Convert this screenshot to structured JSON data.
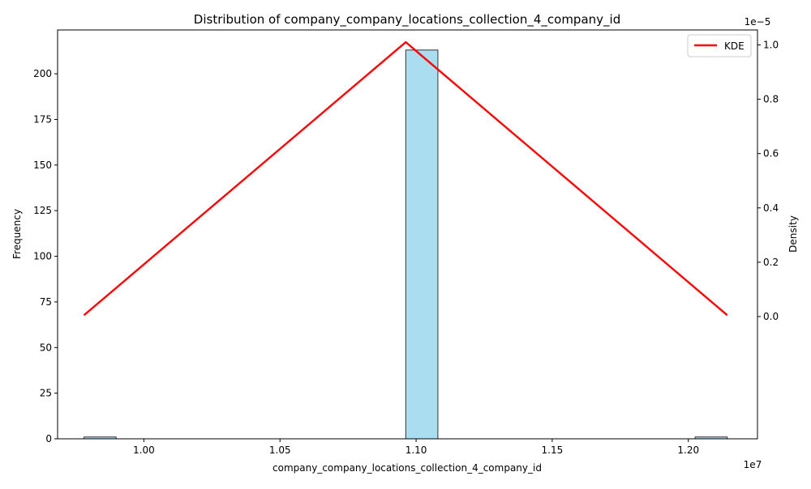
{
  "chart_data": {
    "type": "bar",
    "title": "Distribution of company_company_locations_collection_4_company_id",
    "xlabel": "company_company_locations_collection_4_company_id",
    "ylabel": "Frequency",
    "ylabel_right": "Density",
    "x_offset_label": "1e7",
    "y_right_offset_label": "1e−5",
    "xlim": [
      0.9683,
      1.2254
    ],
    "ylim": [
      0,
      224
    ],
    "y_right_lim": [
      -4.5e-06,
      1.055e-05
    ],
    "x_ticks": [
      1.0,
      1.05,
      1.1,
      1.15,
      1.2
    ],
    "x_tick_labels": [
      "1.00",
      "1.05",
      "1.10",
      "1.15",
      "1.20"
    ],
    "y_ticks": [
      0,
      25,
      50,
      75,
      100,
      125,
      150,
      175,
      200
    ],
    "y_tick_labels": [
      "0",
      "25",
      "50",
      "75",
      "100",
      "125",
      "150",
      "175",
      "200"
    ],
    "y_right_ticks": [
      0,
      2e-06,
      4e-06,
      6e-06,
      8e-06,
      1e-05
    ],
    "y_right_tick_labels": [
      "0.0",
      "0.2",
      "0.4",
      "0.6",
      "0.8",
      "1.0"
    ],
    "histogram": {
      "bins": [
        {
          "x0": 0.978,
          "x1": 0.9898,
          "count": 1
        },
        {
          "x0": 1.0962,
          "x1": 1.108,
          "count": 213
        },
        {
          "x0": 1.2025,
          "x1": 1.2143,
          "count": 1
        }
      ],
      "color": "#87ceeb",
      "edge_color": "#333333"
    },
    "series": [
      {
        "name": "KDE",
        "color": "#ff0000",
        "x": [
          0.978,
          1.0962,
          1.2143
        ],
        "y": [
          5e-08,
          1.01e-05,
          5e-08
        ]
      }
    ],
    "legend_position": "top-right",
    "grid": false
  }
}
